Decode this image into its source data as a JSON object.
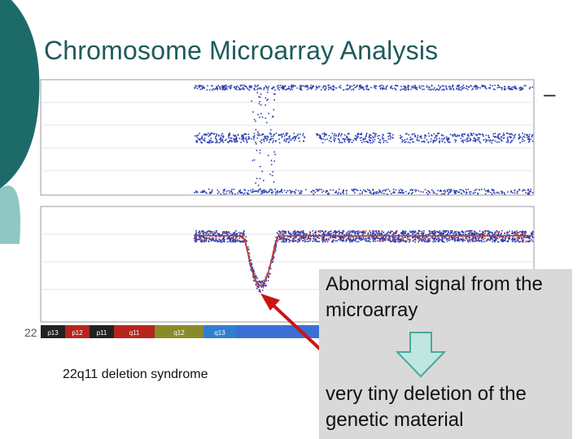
{
  "title": "Chromosome Microarray Analysis",
  "dash": "–",
  "caption": "22q11 deletion syndrome",
  "callout": {
    "line1": "Abnormal signal from the microarray",
    "line2": "very tiny deletion of the genetic material"
  },
  "chromosome_label": "22",
  "bands": [
    "p13",
    "p12",
    "p11",
    "q11",
    "q12",
    "q13"
  ],
  "colors": {
    "title": "#1f5a5c",
    "deco_dark": "#1d6b69",
    "deco_light": "#8fc7c2",
    "points": "#2b3fb0",
    "trend": "#c0392b",
    "callout_bg": "#d9d9d9",
    "down_arrow_fill": "#bfe6e0",
    "down_arrow_stroke": "#4aa79b",
    "red_arrow": "#cc1414"
  }
}
